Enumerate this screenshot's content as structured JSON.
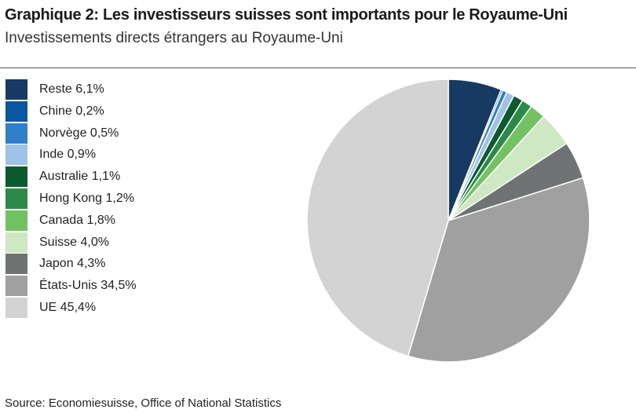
{
  "chart_data": {
    "type": "pie",
    "title": "Graphique 2: Les investisseurs suisses sont importants pour le Royaume-Uni",
    "subtitle": "Investissements directs étrangers au Royaume-Uni",
    "legend_placement": "left",
    "slices": [
      {
        "label": "Reste 6,1%",
        "value": 6.1,
        "color": "#173a63"
      },
      {
        "label": "Chine 0,2%",
        "value": 0.2,
        "color": "#0a56a3"
      },
      {
        "label": "Norvège 0,5%",
        "value": 0.5,
        "color": "#2f7fcb"
      },
      {
        "label": "Inde 0,9%",
        "value": 0.9,
        "color": "#9fc3e6"
      },
      {
        "label": "Australie 1,1%",
        "value": 1.1,
        "color": "#0b5a30"
      },
      {
        "label": "Hong Kong 1,2%",
        "value": 1.2,
        "color": "#2b8a48"
      },
      {
        "label": "Canada 1,8%",
        "value": 1.8,
        "color": "#72c262"
      },
      {
        "label": "Suisse 4,0%",
        "value": 4.0,
        "color": "#cfe8c4"
      },
      {
        "label": "Japon 4,3%",
        "value": 4.3,
        "color": "#707374"
      },
      {
        "label": "États-Unis  34,5%",
        "value": 34.5,
        "color": "#a0a0a0"
      },
      {
        "label": "UE 45,4%",
        "value": 45.4,
        "color": "#d3d3d3"
      }
    ],
    "source": "Source: Economiesuisse, Office of National Statistics"
  }
}
